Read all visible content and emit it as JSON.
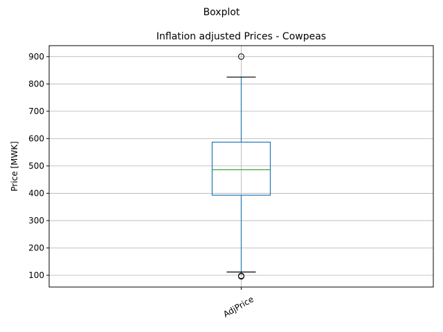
{
  "chart_data": {
    "type": "box",
    "suptitle": "Boxplot",
    "title": "Inflation adjusted Prices - Cowpeas",
    "xlabel": "",
    "ylabel": "Price [MWK]",
    "categories": [
      "AdjPrice"
    ],
    "ylim": [
      57,
      940
    ],
    "yticks": [
      100,
      200,
      300,
      400,
      500,
      600,
      700,
      800,
      900
    ],
    "grid": true,
    "boxes": [
      {
        "name": "AdjPrice",
        "whisker_low": 112,
        "q1": 393,
        "median": 486,
        "q3": 587,
        "whisker_high": 825,
        "outliers": [
          900,
          98,
          96
        ]
      }
    ],
    "colors": {
      "box": "#1f77b4",
      "median": "#2ca02c",
      "grid": "#b0b0b0",
      "cap": "#000000",
      "outlier": "#000000"
    }
  }
}
